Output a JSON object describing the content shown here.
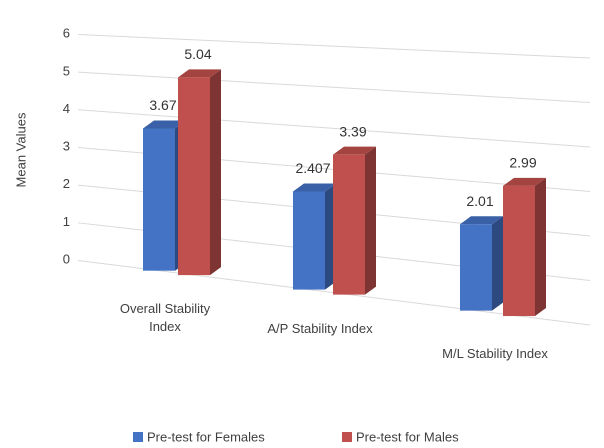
{
  "chart_data": {
    "type": "bar3d",
    "y_label": "Mean Values",
    "categories": [
      "Overall Stability Index",
      "A/P Stability Index",
      "M/L Stability Index"
    ],
    "series": [
      {
        "name": "Pre-test for Females",
        "color": "#4472c4",
        "values": [
          3.67,
          2.407,
          2.01
        ]
      },
      {
        "name": "Pre-test for Males",
        "color": "#c0504d",
        "values": [
          5.04,
          3.39,
          2.99
        ]
      }
    ],
    "ylim": [
      0,
      6
    ],
    "yticks": [
      0,
      1,
      2,
      3,
      4,
      5,
      6
    ],
    "grid": true,
    "legend": "bottom"
  }
}
